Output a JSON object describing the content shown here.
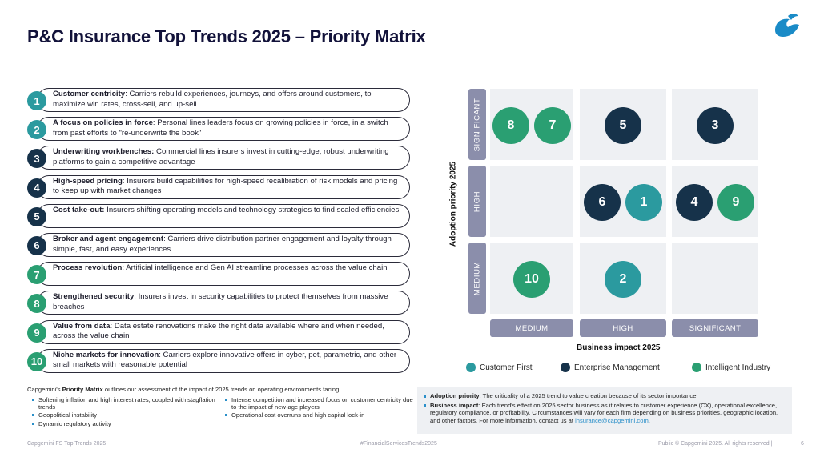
{
  "title": "P&C Insurance Top Trends 2025 – Priority Matrix",
  "colors": {
    "customer_first": "#2a9f72",
    "enterprise_management": "#16324a",
    "intelligent_industry": "#2b9a9f",
    "strip": "#8b8eab",
    "cell": "#eef0f3",
    "link": "#2a8fc9"
  },
  "trends": [
    {
      "num": "1",
      "title": "Customer centricity",
      "text": ": Carriers rebuild experiences, journeys, and offers around customers, to maximize win rates, cross-sell, and up-sell",
      "color": "#2b9a9f"
    },
    {
      "num": "2",
      "title": "A focus on policies in force",
      "text": ": Personal lines leaders focus on growing policies in force, in a switch from past efforts to \"re-underwrite the book\"",
      "color": "#2b9a9f"
    },
    {
      "num": "3",
      "title": "Underwriting workbenches:",
      "text": " Commercial lines insurers invest in cutting-edge, robust underwriting platforms to gain a competitive advantage",
      "color": "#16324a"
    },
    {
      "num": "4",
      "title": "High-speed pricing",
      "text": ": Insurers build capabilities for high-speed recalibration of risk models and pricing to keep up with market changes",
      "color": "#16324a"
    },
    {
      "num": "5",
      "title": "Cost take-out:",
      "text": " Insurers shifting operating models and technology strategies to find scaled efficiencies",
      "color": "#16324a"
    },
    {
      "num": "6",
      "title": "Broker and agent engagement",
      "text": ": Carriers drive distribution partner engagement and loyalty through simple, fast, and easy experiences",
      "color": "#16324a"
    },
    {
      "num": "7",
      "title": "Process revolution",
      "text": ": Artificial intelligence and Gen AI streamline processes across the value chain",
      "color": "#2a9f72"
    },
    {
      "num": "8",
      "title": "Strengthened security",
      "text": ": Insurers invest in security capabilities to protect themselves from massive breaches",
      "color": "#2a9f72"
    },
    {
      "num": "9",
      "title": "Value from data",
      "text": ": Data estate renovations make the right data available where and when needed, across the value chain",
      "color": "#2a9f72"
    },
    {
      "num": "10",
      "title": "Niche markets for innovation",
      "text": ": Carriers explore innovative offers in cyber, pet, parametric, and other small markets with reasonable potential",
      "color": "#2a9f72"
    }
  ],
  "matrix": {
    "y_title": "Adoption priority 2025",
    "x_title": "Business impact 2025",
    "y_levels": [
      "SIGNIFICANT",
      "HIGH",
      "MEDIUM"
    ],
    "x_levels": [
      "MEDIUM",
      "HIGH",
      "SIGNIFICANT"
    ],
    "bubbles": [
      {
        "label": "8",
        "impact": "MEDIUM",
        "adoption": "SIGNIFICANT",
        "color": "#2a9f72"
      },
      {
        "label": "7",
        "impact": "MEDIUM",
        "adoption": "SIGNIFICANT",
        "color": "#2a9f72"
      },
      {
        "label": "5",
        "impact": "HIGH",
        "adoption": "SIGNIFICANT",
        "color": "#16324a"
      },
      {
        "label": "3",
        "impact": "SIGNIFICANT",
        "adoption": "SIGNIFICANT",
        "color": "#16324a"
      },
      {
        "label": "6",
        "impact": "HIGH",
        "adoption": "HIGH",
        "color": "#16324a"
      },
      {
        "label": "1",
        "impact": "HIGH",
        "adoption": "HIGH",
        "color": "#2b9a9f"
      },
      {
        "label": "4",
        "impact": "SIGNIFICANT",
        "adoption": "HIGH",
        "color": "#16324a"
      },
      {
        "label": "9",
        "impact": "SIGNIFICANT",
        "adoption": "HIGH",
        "color": "#2a9f72"
      },
      {
        "label": "10",
        "impact": "MEDIUM",
        "adoption": "MEDIUM",
        "color": "#2a9f72"
      },
      {
        "label": "2",
        "impact": "HIGH",
        "adoption": "MEDIUM",
        "color": "#2b9a9f"
      }
    ]
  },
  "legend": [
    {
      "label": "Customer First",
      "color": "#2b9a9f"
    },
    {
      "label": "Enterprise Management",
      "color": "#16324a"
    },
    {
      "label": "Intelligent Industry",
      "color": "#2a9f72"
    }
  ],
  "assessment": {
    "prefix": "Capgemini's ",
    "bold": "Priority Matrix",
    "suffix": " outlines our assessment of the impact of 2025 trends on operating environments facing:",
    "left": [
      "Softening inflation and high interest rates, coupled with stagflation trends",
      "Geopolitical instability",
      "Dynamic regulatory activity"
    ],
    "right": [
      "Intense competition and increased focus on customer centricity due to the impact of new-age players",
      "Operational cost overruns and high capital lock-in"
    ]
  },
  "definitions": {
    "adoption_term": "Adoption priority",
    "adoption_text": ": The criticality of a 2025 trend to value creation because of its sector importance.",
    "impact_term": "Business impact",
    "impact_text": ": Each trend's effect on 2025 sector business as it relates to customer experience (CX), operational excellence, regulatory compliance, or profitability. Circumstances will vary for each firm depending on business priorities, geographic location, and other factors. For more information, contact us at ",
    "email": "insurance@capgemini.com",
    "end": "."
  },
  "footer": {
    "left": "Capgemini FS Top Trends 2025",
    "center": "#FinancialServicesTrends2025",
    "right": "Public © Capgemini 2025. All rights reserved  |",
    "page": "6"
  }
}
